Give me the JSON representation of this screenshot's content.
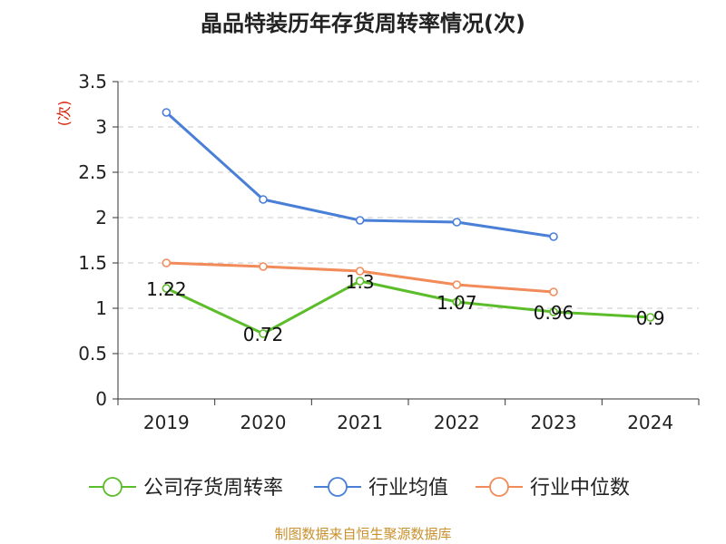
{
  "chart_data": {
    "type": "line",
    "title": "晶品特装历年存货周转率情况(次)",
    "unit": "(次)",
    "categories": [
      "2019",
      "2020",
      "2021",
      "2022",
      "2023",
      "2024"
    ],
    "ylim": [
      0,
      3.5
    ],
    "yticks": [
      "0",
      "0.5",
      "1",
      "1.5",
      "2",
      "2.5",
      "3",
      "3.5"
    ],
    "grid": true,
    "legend_position": "bottom",
    "series": [
      {
        "name": "公司存货周转率",
        "color": "#5cbd2a",
        "values": [
          1.22,
          0.72,
          1.3,
          1.07,
          0.96,
          0.9
        ],
        "labels": [
          "1.22",
          "0.72",
          "1.3",
          "1.07",
          "0.96",
          "0.9"
        ]
      },
      {
        "name": "行业均值",
        "color": "#4a7fd8",
        "values": [
          3.16,
          2.2,
          1.97,
          1.95,
          1.79,
          null
        ]
      },
      {
        "name": "行业中位数",
        "color": "#f28b5a",
        "values": [
          1.5,
          1.46,
          1.41,
          1.26,
          1.18,
          null
        ]
      }
    ],
    "source": "制图数据来自恒生聚源数据库",
    "unit_color": "#d81e06",
    "source_color": "#c8912e"
  }
}
